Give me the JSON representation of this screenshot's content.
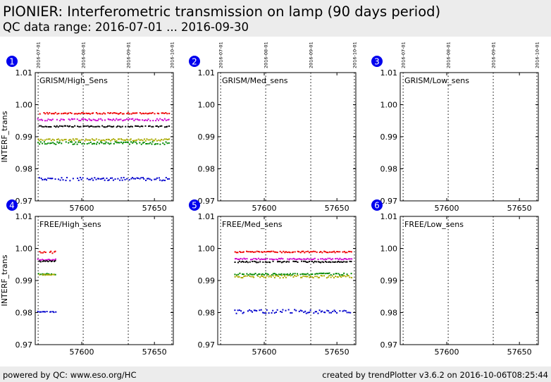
{
  "header": {
    "title": "PIONIER: Interferometric transmission on lamp (90 days period)",
    "subtitle": "QC data range: 2016-07-01 ... 2016-09-30"
  },
  "footer": {
    "left": "powered by QC: www.eso.org/HC",
    "right": "created by trendPlotter v3.6.2 on 2016-10-06T08:25:44"
  },
  "colors": {
    "red": "#ee0000",
    "magenta": "#cc00cc",
    "black": "#000000",
    "yellow": "#aaaa00",
    "green": "#008800",
    "blue": "#0000cc",
    "badge": "#0000ee"
  },
  "chart_data": {
    "type": "scatter",
    "xlim": [
      57568,
      57663
    ],
    "ylim": [
      0.97,
      1.01
    ],
    "x_ticks": [
      57600,
      57650
    ],
    "y_ticks": [
      "0.97",
      "0.98",
      "0.99",
      "1.00",
      "1.01"
    ],
    "date_markers": [
      {
        "label": "2016-07-01",
        "mjd": 57570
      },
      {
        "label": "2016-08-01",
        "mjd": 57601
      },
      {
        "label": "2016-09-01",
        "mjd": 57632
      },
      {
        "label": "2016-10-01",
        "mjd": 57662
      }
    ],
    "panels": [
      {
        "number": "1",
        "label": "GRISM/High_Sens",
        "ylabel": "INTERF_trans",
        "series": [
          {
            "color": "red",
            "x_range": [
              57570,
              57660
            ],
            "y": 0.9973,
            "jitter": 0.0002
          },
          {
            "color": "magenta",
            "x_range": [
              57570,
              57660
            ],
            "y": 0.9953,
            "jitter": 0.0003
          },
          {
            "color": "black",
            "x_range": [
              57570,
              57660
            ],
            "y": 0.9932,
            "jitter": 0.0002
          },
          {
            "color": "yellow",
            "x_range": [
              57570,
              57660
            ],
            "y": 0.989,
            "jitter": 0.0003
          },
          {
            "color": "green",
            "x_range": [
              57570,
              57660
            ],
            "y": 0.988,
            "jitter": 0.0004
          },
          {
            "color": "blue",
            "x_range": [
              57570,
              57660
            ],
            "y": 0.9768,
            "jitter": 0.0005
          }
        ]
      },
      {
        "number": "2",
        "label": "GRISM/Med_sens",
        "ylabel": "",
        "series": []
      },
      {
        "number": "3",
        "label": "GRISM/Low_sens",
        "ylabel": "",
        "series": []
      },
      {
        "number": "4",
        "label": "FREE/High_sens",
        "ylabel": "INTERF_trans",
        "series": [
          {
            "color": "red",
            "x_range": [
              57570,
              57582
            ],
            "y": 0.9988,
            "jitter": 0.0003
          },
          {
            "color": "magenta",
            "x_range": [
              57570,
              57582
            ],
            "y": 0.9965,
            "jitter": 0.0002
          },
          {
            "color": "black",
            "x_range": [
              57570,
              57582
            ],
            "y": 0.996,
            "jitter": 0.0002
          },
          {
            "color": "green",
            "x_range": [
              57570,
              57582
            ],
            "y": 0.992,
            "jitter": 0.0002
          },
          {
            "color": "yellow",
            "x_range": [
              57570,
              57582
            ],
            "y": 0.9918,
            "jitter": 0.0002
          },
          {
            "color": "blue",
            "x_range": [
              57570,
              57582
            ],
            "y": 0.9802,
            "jitter": 0.0002
          }
        ]
      },
      {
        "number": "5",
        "label": "FREE/Med_sens",
        "ylabel": "",
        "series": [
          {
            "color": "red",
            "x_range": [
              57580,
              57660
            ],
            "y": 0.9989,
            "jitter": 0.0002
          },
          {
            "color": "magenta",
            "x_range": [
              57580,
              57660
            ],
            "y": 0.9967,
            "jitter": 0.0002
          },
          {
            "color": "black",
            "x_range": [
              57580,
              57660
            ],
            "y": 0.9958,
            "jitter": 0.0002
          },
          {
            "color": "green",
            "x_range": [
              57580,
              57660
            ],
            "y": 0.992,
            "jitter": 0.0003
          },
          {
            "color": "yellow",
            "x_range": [
              57580,
              57660
            ],
            "y": 0.9912,
            "jitter": 0.0004
          },
          {
            "color": "blue",
            "x_range": [
              57580,
              57660
            ],
            "y": 0.9803,
            "jitter": 0.0006
          }
        ]
      },
      {
        "number": "6",
        "label": "FREE/Low_sens",
        "ylabel": "",
        "series": []
      }
    ]
  }
}
